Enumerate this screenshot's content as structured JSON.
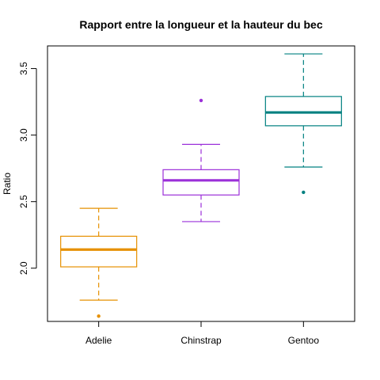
{
  "chart_data": {
    "type": "box",
    "title": "Rapport entre la longueur et la hauteur du bec",
    "xlabel": "",
    "ylabel": "Ratio",
    "categories": [
      "Adelie",
      "Chinstrap",
      "Gentoo"
    ],
    "ylim": [
      1.6,
      3.67
    ],
    "yticks": [
      "2.0",
      "2.5",
      "3.0",
      "3.5"
    ],
    "grid": false,
    "legend": "none",
    "series": [
      {
        "category": "Adelie",
        "color": "#E69000",
        "whisker_low": 1.76,
        "q1": 2.01,
        "median": 2.14,
        "q3": 2.24,
        "whisker_high": 2.45,
        "outliers": [
          1.64
        ]
      },
      {
        "category": "Chinstrap",
        "color": "#9B30D9",
        "whisker_low": 2.35,
        "q1": 2.55,
        "median": 2.66,
        "q3": 2.74,
        "whisker_high": 2.93,
        "outliers": [
          3.26
        ]
      },
      {
        "category": "Gentoo",
        "color": "#008080",
        "whisker_low": 2.76,
        "q1": 3.07,
        "median": 3.17,
        "q3": 3.29,
        "whisker_high": 3.61,
        "outliers": [
          2.57
        ]
      }
    ]
  }
}
